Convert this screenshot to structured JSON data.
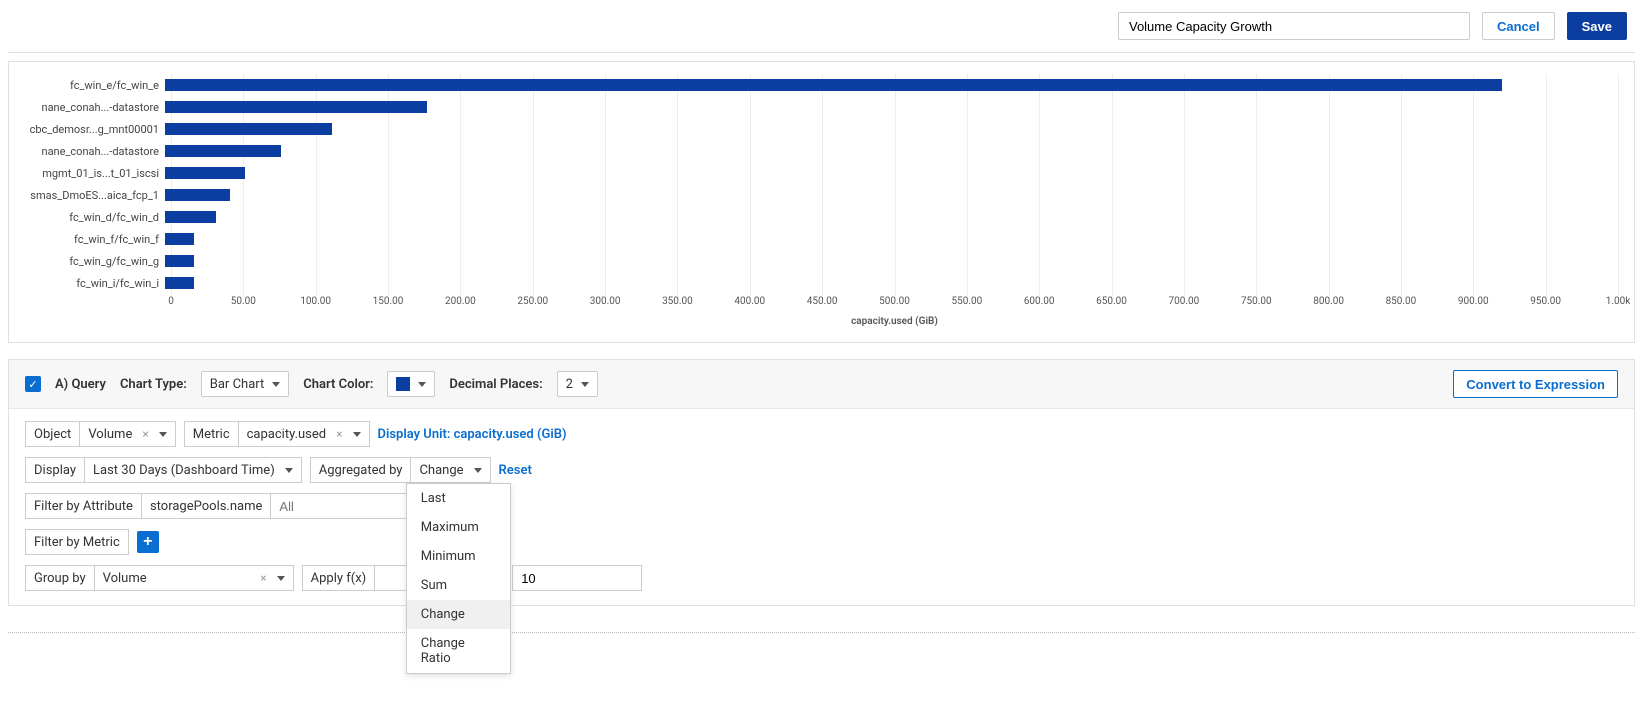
{
  "header": {
    "title_value": "Volume Capacity Growth",
    "cancel_label": "Cancel",
    "save_label": "Save"
  },
  "chart": {
    "type": "bar-horizontal",
    "bar_color": "#0b3ea0",
    "grid_color": "#eeeeee",
    "background_color": "#ffffff",
    "x_axis_label": "capacity.used (GiB)",
    "xlim_max": 1000,
    "categories": [
      {
        "label": "fc_win_e/fc_win_e",
        "value": 920
      },
      {
        "label": "nane_conah...-datastore",
        "value": 180
      },
      {
        "label": "cbc_demosr...g_mnt00001",
        "value": 115
      },
      {
        "label": "nane_conah...-datastore",
        "value": 80
      },
      {
        "label": "mgmt_01_is...t_01_iscsi",
        "value": 55
      },
      {
        "label": "smas_DmoES...aica_fcp_1",
        "value": 45
      },
      {
        "label": "fc_win_d/fc_win_d",
        "value": 35
      },
      {
        "label": "fc_win_f/fc_win_f",
        "value": 20
      },
      {
        "label": "fc_win_g/fc_win_g",
        "value": 20
      },
      {
        "label": "fc_win_i/fc_win_i",
        "value": 20
      }
    ],
    "x_ticks": [
      "0",
      "50.00",
      "100.00",
      "150.00",
      "200.00",
      "250.00",
      "300.00",
      "350.00",
      "400.00",
      "450.00",
      "500.00",
      "550.00",
      "600.00",
      "650.00",
      "700.00",
      "750.00",
      "800.00",
      "850.00",
      "900.00",
      "950.00",
      "1.00k"
    ]
  },
  "query": {
    "checkbox_checked": true,
    "query_label": "A) Query",
    "chart_type_label": "Chart Type:",
    "chart_type_value": "Bar Chart",
    "chart_color_label": "Chart Color:",
    "chart_color_value": "#0b3ea0",
    "decimal_places_label": "Decimal Places:",
    "decimal_places_value": "2",
    "convert_label": "Convert to Expression",
    "object_label": "Object",
    "object_value": "Volume",
    "metric_label": "Metric",
    "metric_value": "capacity.used",
    "display_unit_label": "Display Unit: capacity.used (GiB)",
    "display_label": "Display",
    "display_value": "Last 30 Days (Dashboard Time)",
    "aggregated_label": "Aggregated by",
    "aggregated_value": "Change",
    "reset_label": "Reset",
    "filter_attr_label": "Filter by Attribute",
    "filter_attr_field": "storagePools.name",
    "filter_attr_placeholder": "All",
    "filter_metric_label": "Filter by Metric",
    "group_by_label": "Group by",
    "group_by_value": "Volume",
    "apply_fx_label": "Apply f(x)",
    "apply_fx_number": "10",
    "dropdown_options": [
      "Last",
      "Maximum",
      "Minimum",
      "Sum",
      "Change",
      "Change Ratio"
    ],
    "dropdown_highlight_index": 4
  }
}
